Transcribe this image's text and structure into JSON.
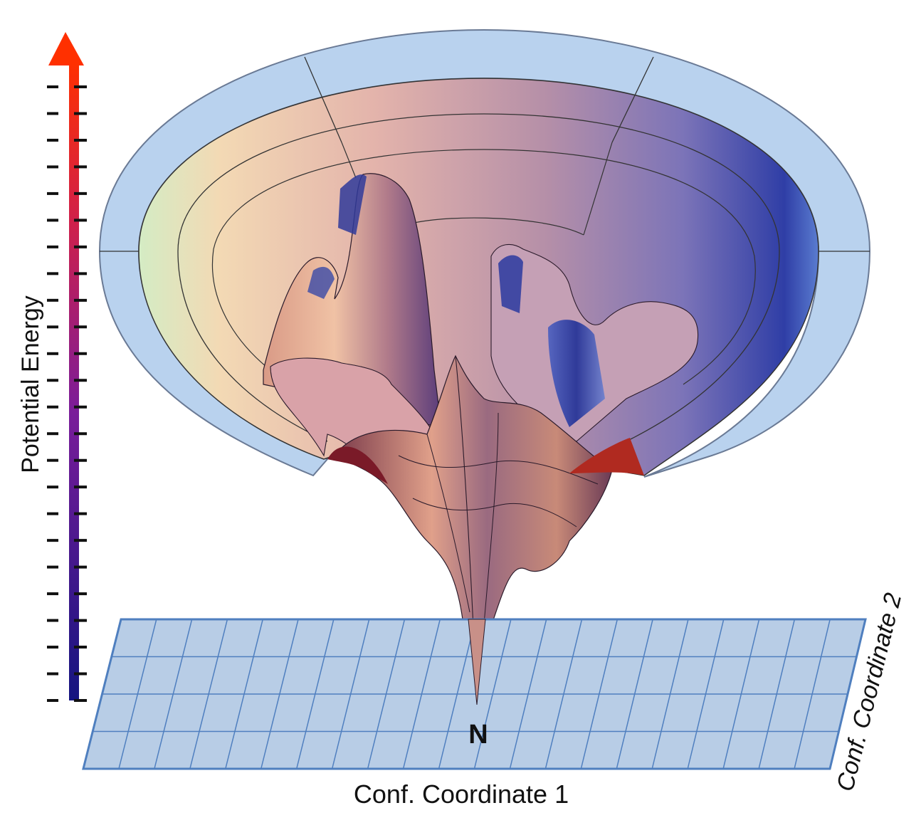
{
  "labels": {
    "potential_energy": "Potential Energy",
    "conf_coordinate_1": "Conf. Coordinate 1",
    "conf_coordinate_2": "Conf. Coordinate 2",
    "native_state": "N"
  },
  "colors": {
    "energy_arrow_low": "#1a1a8c",
    "energy_arrow_high": "#ff3300",
    "funnel_rim": "#b9d2ee",
    "funnel_surface_warm": "#e8b3a2",
    "funnel_surface_cool": "#3a49b0",
    "plane_fill": "#b8cde6",
    "plane_grid": "#4f7fbf"
  }
}
